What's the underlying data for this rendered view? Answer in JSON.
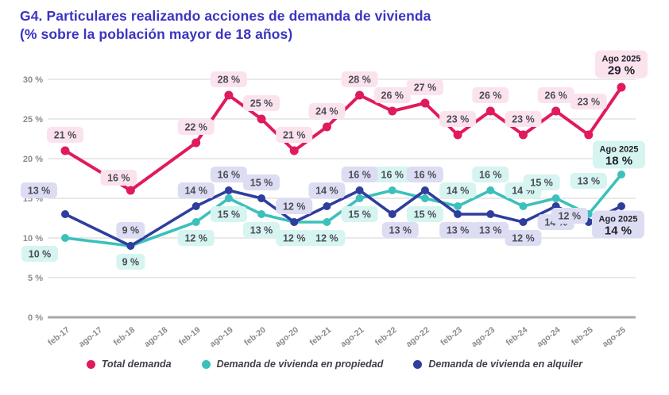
{
  "title": {
    "line1": "G4. Particulares realizando acciones de demanda de vivienda",
    "line2": "(% sobre la población mayor de 18 años)"
  },
  "colors": {
    "title": "#3B34C1",
    "grid": "#DCDCDE",
    "axis_line": "#A8A8A8",
    "axis_text": "#8A8A91",
    "data_label_text": "#4C4C57",
    "callout_text": "#20202B",
    "legend_text": "#3F3F4A",
    "background": "#FFFFFF"
  },
  "chart_data": {
    "type": "line",
    "title": "G4. Particulares realizando acciones de demanda de vivienda (% sobre la población mayor de 18 años)",
    "categories": [
      "feb-17",
      "ago-17",
      "feb-18",
      "ago-18",
      "feb-19",
      "ago-19",
      "feb-20",
      "ago-20",
      "feb-21",
      "ago-21",
      "feb-22",
      "ago-22",
      "feb-23",
      "ago-23",
      "feb-24",
      "ago-24",
      "feb-25",
      "ago-25"
    ],
    "y_ticks": [
      "30 %",
      "25 %",
      "20 %",
      "15 %",
      "10 %",
      "5 %",
      "0 %"
    ],
    "ylim": [
      0,
      30
    ],
    "unit": "%",
    "grid": true,
    "legend_position": "bottom",
    "series": [
      {
        "name": "Total demanda",
        "color": "#E11A5C",
        "label_bg": "#FBE3EE",
        "values": [
          21,
          null,
          16,
          null,
          22,
          28,
          25,
          21,
          24,
          28,
          26,
          27,
          23,
          26,
          23,
          26,
          23,
          29
        ],
        "label_pos": [
          "a",
          null,
          "al",
          null,
          "a",
          "a",
          "a",
          "a",
          "a",
          "a",
          "a",
          "a",
          "a",
          "a",
          "a",
          "a",
          "a2",
          null
        ],
        "end_label": {
          "title": "Ago 2025",
          "value": "29 %",
          "offset": [
            0,
            -29
          ]
        }
      },
      {
        "name": "Demanda de vivienda en propiedad",
        "color": "#3CC0BB",
        "label_bg": "#D6F4F0",
        "values": [
          10,
          null,
          9,
          null,
          12,
          15,
          13,
          12,
          12,
          15,
          16,
          15,
          14,
          16,
          14,
          15,
          13,
          18
        ],
        "label_pos": [
          "bl",
          null,
          "b",
          null,
          "b",
          "b",
          "b",
          "b",
          "b",
          "b",
          "a",
          "b",
          "a",
          "a",
          "a",
          "al2",
          "a2",
          null
        ],
        "end_label": {
          "title": "Ago 2025",
          "value": "18 %",
          "offset": [
            -3,
            -25
          ]
        }
      },
      {
        "name": "Demanda de vivienda en alquiler",
        "color": "#2F3D9D",
        "label_bg": "#DCDDF2",
        "values": [
          13,
          null,
          9,
          null,
          14,
          16,
          15,
          12,
          14,
          16,
          13,
          16,
          13,
          13,
          12,
          14,
          12,
          14
        ],
        "label_pos": [
          "alx",
          null,
          "a",
          null,
          "a",
          "a",
          "a",
          "a",
          "a",
          "a",
          "br",
          "a",
          "b",
          "b",
          "b",
          "b",
          "l",
          null
        ],
        "end_label": {
          "title": "Ago 2025",
          "value": "14 %",
          "offset": [
            -4,
            23
          ]
        }
      }
    ]
  }
}
